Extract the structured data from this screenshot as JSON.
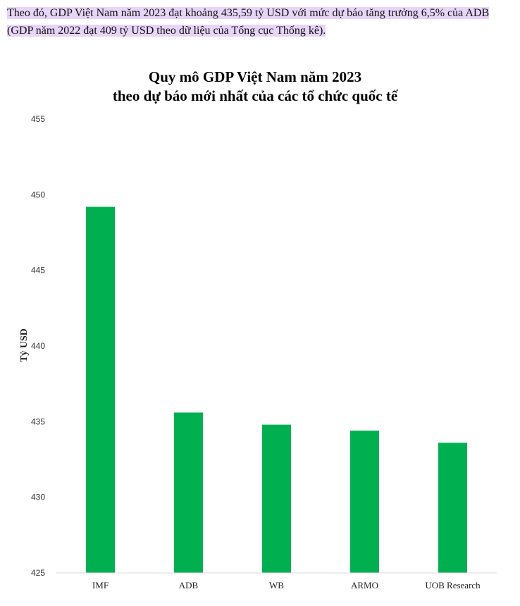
{
  "intro_text": "Theo đó, GDP Việt Nam năm 2023 đạt khoảng 435,59 tỷ USD với mức dự báo tăng trưởng 6,5% của ADB (GDP năm 2022 đạt 409 tỷ USD theo dữ liệu của Tổng cục Thống kê).",
  "colors": {
    "bar": "#00b050",
    "highlight": "#e7d4f7"
  },
  "chart_data": {
    "type": "bar",
    "title": "Quy mô GDP Việt Nam năm 2023",
    "subtitle": "theo dự báo mới nhất của các tổ chức quốc tế",
    "xlabel": "",
    "ylabel": "Tỷ USD",
    "categories": [
      "IMF",
      "ADB",
      "WB",
      "ARMO",
      "UOB Research"
    ],
    "values": [
      449.2,
      435.6,
      434.8,
      434.4,
      433.6
    ],
    "ylim": [
      425,
      455
    ],
    "yticks": [
      425,
      430,
      435,
      440,
      445,
      450,
      455
    ],
    "grid": false,
    "legend": "none"
  }
}
